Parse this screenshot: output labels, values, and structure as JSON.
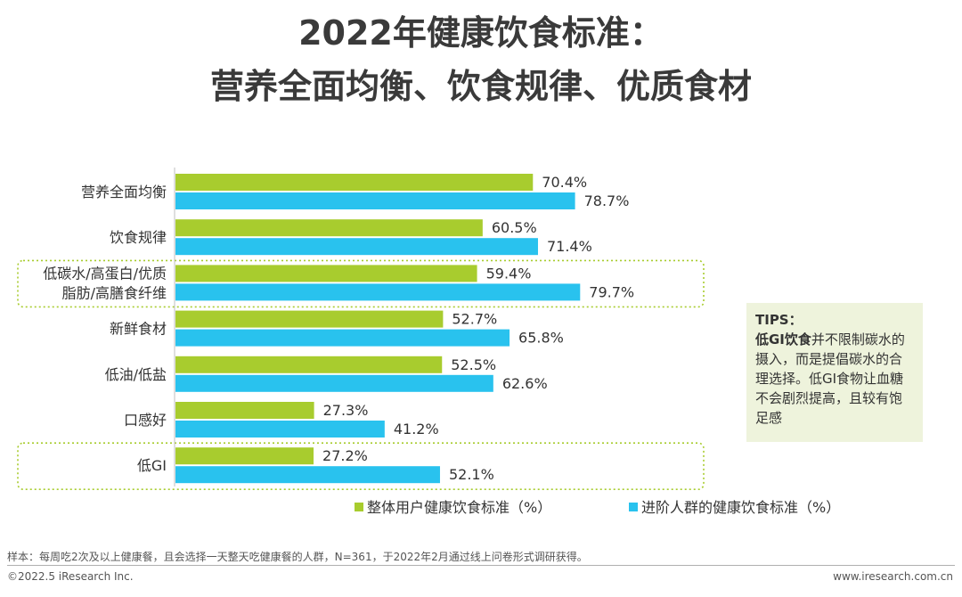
{
  "title_line1": "2022年健康饮食标准：",
  "title_line2": "营养全面均衡、饮食规律、优质食材",
  "chart_data": {
    "type": "bar",
    "orientation": "horizontal",
    "categories": [
      "营养全面均衡",
      "饮食规律",
      "低碳水/高蛋白/优质脂肪/高膳食纤维",
      "新鲜食材",
      "低油/低盐",
      "口感好",
      "低GI"
    ],
    "category_lines": [
      [
        "营养全面均衡"
      ],
      [
        "饮食规律"
      ],
      [
        "低碳水/高蛋白/优质",
        "脂肪/高膳食纤维"
      ],
      [
        "新鲜食材"
      ],
      [
        "低油/低盐"
      ],
      [
        "口感好"
      ],
      [
        "低GI"
      ]
    ],
    "series": [
      {
        "name": "整体用户健康饮食标准（%）",
        "values": [
          70.4,
          60.5,
          59.4,
          52.7,
          52.5,
          27.3,
          27.2
        ],
        "color": "#a8cc2e"
      },
      {
        "name": "进阶人群的健康饮食标准（%）",
        "values": [
          78.7,
          71.4,
          79.7,
          65.8,
          62.6,
          41.2,
          52.1
        ],
        "color": "#29c2ee"
      }
    ],
    "value_suffix": "%",
    "highlighted_categories": [
      2,
      6
    ],
    "highlight_color": "#a8cc2e",
    "legend_position": "bottom"
  },
  "tips": {
    "heading": "TIPS：",
    "bold_lead": "低GI饮食",
    "body": "并不限制碳水的摄入，而是提倡碳水的合理选择。低GI食物让血糖不会剧烈提高，且较有饱足感"
  },
  "footer": {
    "note": "样本：每周吃2次及以上健康餐，且会选择一天整天吃健康餐的人群，N=361，于2022年2月通过线上问卷形式调研获得。",
    "copyright": "©2022.5 iResearch Inc.",
    "website": "www.iresearch.com.cn"
  }
}
